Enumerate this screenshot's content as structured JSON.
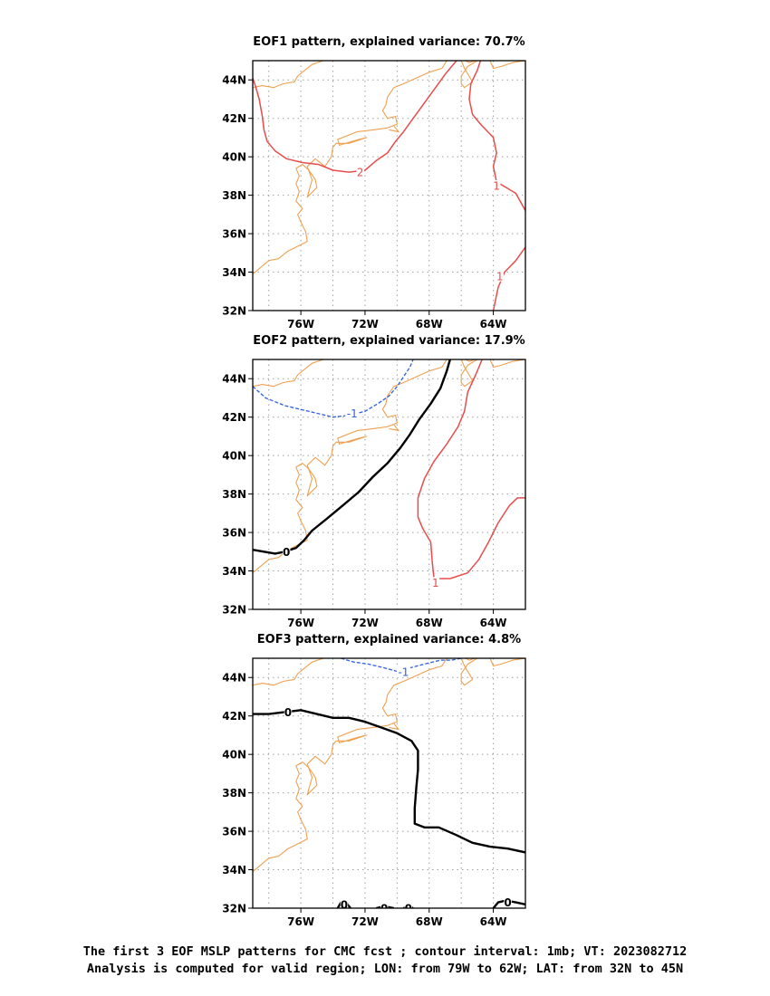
{
  "figure": {
    "caption_line1": "The first 3 EOF MSLP patterns for CMC fcst ; contour interval: 1mb; VT: 2023082712",
    "caption_line2": "Analysis is computed for valid region; LON: from 79W to 62W; LAT: from 32N to 45N"
  },
  "colors": {
    "coast": "#f0a050",
    "positive_contour": "#e84c4c",
    "negative_contour": "#3060e0",
    "zero_contour": "#000000",
    "grid": "#a0a0a0"
  },
  "map_extent": {
    "lon_min": -79,
    "lon_max": -62,
    "lat_min": 32,
    "lat_max": 45
  },
  "axes": {
    "x_ticks": [
      {
        "lon": -76,
        "label": "76W"
      },
      {
        "lon": -72,
        "label": "72W"
      },
      {
        "lon": -68,
        "label": "68W"
      },
      {
        "lon": -64,
        "label": "64W"
      }
    ],
    "y_ticks": [
      {
        "lat": 32,
        "label": "32N"
      },
      {
        "lat": 34,
        "label": "34N"
      },
      {
        "lat": 36,
        "label": "36N"
      },
      {
        "lat": 38,
        "label": "38N"
      },
      {
        "lat": 40,
        "label": "40N"
      },
      {
        "lat": 42,
        "label": "42N"
      },
      {
        "lat": 44,
        "label": "44N"
      }
    ],
    "grid_lons": [
      -78,
      -76,
      -74,
      -72,
      -70,
      -68,
      -66,
      -64,
      -62
    ],
    "grid_lats": [
      32,
      34,
      36,
      38,
      40,
      42,
      44
    ],
    "grid": "dotted"
  },
  "coastline": [
    [
      [
        -79,
        33.9
      ],
      [
        -78,
        34.6
      ],
      [
        -77.4,
        34.7
      ],
      [
        -76.8,
        35.1
      ],
      [
        -76.3,
        35.3
      ],
      [
        -75.6,
        35.6
      ],
      [
        -75.7,
        36.1
      ],
      [
        -76.0,
        36.6
      ],
      [
        -76.2,
        37.0
      ],
      [
        -75.9,
        37.3
      ],
      [
        -76.3,
        37.7
      ],
      [
        -76.1,
        38.2
      ],
      [
        -76.3,
        38.6
      ],
      [
        -76.1,
        39.0
      ],
      [
        -76.3,
        39.4
      ],
      [
        -75.9,
        39.6
      ],
      [
        -75.5,
        39.3
      ],
      [
        -75.1,
        38.8
      ],
      [
        -75.0,
        38.4
      ],
      [
        -75.6,
        37.9
      ],
      [
        -75.3,
        38.8
      ],
      [
        -75.6,
        39.5
      ],
      [
        -75.1,
        39.9
      ],
      [
        -74.5,
        39.5
      ],
      [
        -74.1,
        40.0
      ],
      [
        -74.0,
        40.5
      ],
      [
        -73.8,
        40.7
      ],
      [
        -73.0,
        40.7
      ],
      [
        -71.9,
        41.0
      ],
      [
        -72.4,
        40.9
      ],
      [
        -73.6,
        40.6
      ],
      [
        -73.7,
        40.9
      ],
      [
        -72.5,
        41.3
      ],
      [
        -71.5,
        41.4
      ],
      [
        -70.6,
        41.5
      ],
      [
        -70.0,
        41.7
      ],
      [
        -70.1,
        42.1
      ],
      [
        -70.6,
        42.0
      ],
      [
        -70.9,
        42.4
      ],
      [
        -70.7,
        42.7
      ],
      [
        -70.6,
        43.1
      ],
      [
        -70.2,
        43.6
      ],
      [
        -69.6,
        43.8
      ],
      [
        -68.8,
        44.1
      ],
      [
        -68.0,
        44.4
      ],
      [
        -67.2,
        44.6
      ],
      [
        -66.9,
        45.0
      ]
    ],
    [
      [
        -70.5,
        41.4
      ],
      [
        -69.9,
        41.3
      ],
      [
        -70.2,
        41.6
      ]
    ],
    [
      [
        -79,
        43.6
      ],
      [
        -78.4,
        43.7
      ],
      [
        -77.7,
        43.6
      ],
      [
        -77.1,
        43.8
      ],
      [
        -76.4,
        43.9
      ],
      [
        -76.2,
        44.2
      ],
      [
        -75.9,
        44.4
      ],
      [
        -75.3,
        44.8
      ],
      [
        -74.6,
        45.0
      ]
    ],
    [
      [
        -66.9,
        45.0
      ],
      [
        -66.2,
        45.2
      ],
      [
        -65.5,
        44.9
      ],
      [
        -64.8,
        45.1
      ],
      [
        -64.2,
        45.0
      ],
      [
        -64.0,
        44.6
      ],
      [
        -63.5,
        44.7
      ],
      [
        -62.8,
        44.9
      ],
      [
        -62.0,
        45.0
      ]
    ],
    [
      [
        -66.0,
        45.0
      ],
      [
        -65.8,
        44.6
      ],
      [
        -65.3,
        43.9
      ],
      [
        -65.8,
        43.6
      ],
      [
        -66.0,
        43.8
      ],
      [
        -66.0,
        44.2
      ],
      [
        -65.6,
        44.7
      ],
      [
        -65.0,
        45.0
      ]
    ]
  ],
  "panels": [
    {
      "title": "EOF1 pattern, explained variance: 70.7%",
      "contours": [
        {
          "kind": "positive",
          "label": "2",
          "label_at": [
            -72.3,
            39.2
          ],
          "points": [
            [
              -79,
              44.1
            ],
            [
              -78.8,
              43.6
            ],
            [
              -78.6,
              43.0
            ],
            [
              -78.4,
              42.1
            ],
            [
              -78.3,
              41.4
            ],
            [
              -78.1,
              40.8
            ],
            [
              -77.6,
              40.3
            ],
            [
              -76.9,
              39.9
            ],
            [
              -75.9,
              39.7
            ],
            [
              -74.9,
              39.6
            ],
            [
              -74.0,
              39.3
            ],
            [
              -73.0,
              39.2
            ],
            [
              -72.0,
              39.3
            ],
            [
              -71.3,
              39.8
            ],
            [
              -70.6,
              40.2
            ],
            [
              -70.1,
              40.8
            ],
            [
              -69.6,
              41.3
            ],
            [
              -69.0,
              42.0
            ],
            [
              -68.3,
              42.8
            ],
            [
              -67.6,
              43.6
            ],
            [
              -67.0,
              44.3
            ],
            [
              -66.3,
              45.0
            ]
          ]
        },
        {
          "kind": "positive",
          "label": "1",
          "label_at": [
            -63.8,
            38.5
          ],
          "points": [
            [
              -64.8,
              45.0
            ],
            [
              -65.0,
              44.5
            ],
            [
              -65.4,
              43.8
            ],
            [
              -65.5,
              43.0
            ],
            [
              -65.3,
              42.2
            ],
            [
              -64.8,
              41.7
            ],
            [
              -64.0,
              41.0
            ],
            [
              -63.8,
              40.2
            ],
            [
              -64.0,
              39.5
            ],
            [
              -63.8,
              38.7
            ],
            [
              -63.2,
              38.4
            ],
            [
              -62.6,
              38.1
            ],
            [
              -62.0,
              37.2
            ]
          ]
        },
        {
          "kind": "positive",
          "label": "1",
          "label_at": [
            -63.6,
            33.8
          ],
          "points": [
            [
              -62.0,
              35.3
            ],
            [
              -62.6,
              34.6
            ],
            [
              -63.3,
              34.0
            ],
            [
              -63.7,
              33.2
            ],
            [
              -64.0,
              32.0
            ]
          ]
        }
      ]
    },
    {
      "title": "EOF2 pattern, explained variance: 17.9%",
      "contours": [
        {
          "kind": "negative",
          "label": "-1",
          "label_at": [
            -72.8,
            42.2
          ],
          "points": [
            [
              -79,
              43.6
            ],
            [
              -78.2,
              43.0
            ],
            [
              -77.0,
              42.6
            ],
            [
              -76.0,
              42.4
            ],
            [
              -75.0,
              42.2
            ],
            [
              -74.0,
              42.0
            ],
            [
              -73.0,
              42.1
            ],
            [
              -72.0,
              42.3
            ],
            [
              -71.2,
              42.7
            ],
            [
              -70.5,
              43.1
            ],
            [
              -70.0,
              43.6
            ],
            [
              -69.6,
              44.1
            ],
            [
              -69.2,
              44.6
            ],
            [
              -69.0,
              45.0
            ]
          ]
        },
        {
          "kind": "zero",
          "label": "0",
          "label_at": [
            -76.9,
            35.0
          ],
          "points": [
            [
              -79,
              35.1
            ],
            [
              -78.3,
              35.0
            ],
            [
              -77.6,
              34.9
            ],
            [
              -77.0,
              35.0
            ],
            [
              -76.3,
              35.2
            ],
            [
              -75.8,
              35.6
            ],
            [
              -75.3,
              36.1
            ],
            [
              -74.4,
              36.7
            ],
            [
              -73.4,
              37.4
            ],
            [
              -72.4,
              38.1
            ],
            [
              -71.5,
              38.9
            ],
            [
              -70.6,
              39.6
            ],
            [
              -69.8,
              40.4
            ],
            [
              -69.2,
              41.1
            ],
            [
              -68.6,
              41.9
            ],
            [
              -67.9,
              42.7
            ],
            [
              -67.3,
              43.5
            ],
            [
              -66.9,
              44.4
            ],
            [
              -66.7,
              45.0
            ]
          ]
        },
        {
          "kind": "positive",
          "label": "1",
          "label_at": [
            -67.6,
            33.4
          ],
          "points": [
            [
              -64.7,
              45.0
            ],
            [
              -65.1,
              44.2
            ],
            [
              -65.6,
              43.3
            ],
            [
              -65.8,
              42.3
            ],
            [
              -66.2,
              41.5
            ],
            [
              -66.9,
              40.6
            ],
            [
              -67.7,
              39.7
            ],
            [
              -68.3,
              38.8
            ],
            [
              -68.7,
              37.8
            ],
            [
              -68.7,
              36.8
            ],
            [
              -68.4,
              36.2
            ],
            [
              -67.9,
              35.5
            ],
            [
              -67.8,
              34.4
            ],
            [
              -67.7,
              33.6
            ],
            [
              -66.7,
              33.6
            ],
            [
              -65.6,
              33.9
            ],
            [
              -64.9,
              34.6
            ],
            [
              -64.3,
              35.5
            ],
            [
              -63.7,
              36.5
            ],
            [
              -63.0,
              37.4
            ],
            [
              -62.5,
              37.8
            ],
            [
              -62.0,
              37.8
            ]
          ]
        }
      ]
    },
    {
      "title": "EOF3 pattern, explained variance: 4.8%",
      "contours": [
        {
          "kind": "negative",
          "label": "-1",
          "label_at": [
            -69.6,
            44.3
          ],
          "points": [
            [
              -73.5,
              45.0
            ],
            [
              -72.7,
              44.8
            ],
            [
              -71.8,
              44.7
            ],
            [
              -70.8,
              44.5
            ],
            [
              -69.9,
              44.3
            ],
            [
              -69.2,
              44.5
            ],
            [
              -68.3,
              44.7
            ],
            [
              -67.3,
              44.9
            ],
            [
              -66.6,
              44.9
            ],
            [
              -66.0,
              45.0
            ]
          ]
        },
        {
          "kind": "zero",
          "label": "0",
          "label_at": [
            -76.8,
            42.2
          ],
          "points": [
            [
              -79,
              42.1
            ],
            [
              -78.0,
              42.1
            ],
            [
              -77.0,
              42.2
            ],
            [
              -76.0,
              42.3
            ],
            [
              -75.0,
              42.1
            ],
            [
              -74.0,
              41.9
            ],
            [
              -73.0,
              41.9
            ],
            [
              -72.0,
              41.7
            ],
            [
              -71.0,
              41.4
            ],
            [
              -70.0,
              41.1
            ],
            [
              -69.1,
              40.7
            ],
            [
              -68.7,
              40.2
            ],
            [
              -68.7,
              39.2
            ],
            [
              -68.8,
              38.3
            ],
            [
              -68.9,
              37.2
            ],
            [
              -68.9,
              36.4
            ],
            [
              -68.3,
              36.2
            ],
            [
              -67.4,
              36.2
            ],
            [
              -66.3,
              35.8
            ],
            [
              -65.3,
              35.4
            ],
            [
              -64.2,
              35.2
            ],
            [
              -63.1,
              35.1
            ],
            [
              -62.0,
              34.9
            ]
          ]
        },
        {
          "kind": "zero",
          "label": "0",
          "label_at": [
            -73.3,
            32.2
          ],
          "points": [
            [
              -73.7,
              32.0
            ],
            [
              -73.5,
              32.3
            ],
            [
              -73.2,
              32.3
            ],
            [
              -72.9,
              32.0
            ]
          ]
        },
        {
          "kind": "zero",
          "label": "0",
          "label_at": [
            -70.8,
            32.0
          ],
          "points": [
            [
              -71.3,
              32.0
            ],
            [
              -70.8,
              32.1
            ],
            [
              -70.2,
              32.0
            ]
          ]
        },
        {
          "kind": "zero",
          "label": "0",
          "label_at": [
            -69.3,
            32.0
          ],
          "points": [
            [
              -69.6,
              32.0
            ],
            [
              -69.3,
              32.1
            ],
            [
              -69.0,
              32.0
            ]
          ]
        },
        {
          "kind": "zero",
          "label": "0",
          "label_at": [
            -63.1,
            32.3
          ],
          "points": [
            [
              -64.0,
              32.0
            ],
            [
              -63.7,
              32.3
            ],
            [
              -63.2,
              32.4
            ],
            [
              -62.6,
              32.3
            ],
            [
              -62.0,
              32.2
            ]
          ]
        }
      ]
    }
  ]
}
